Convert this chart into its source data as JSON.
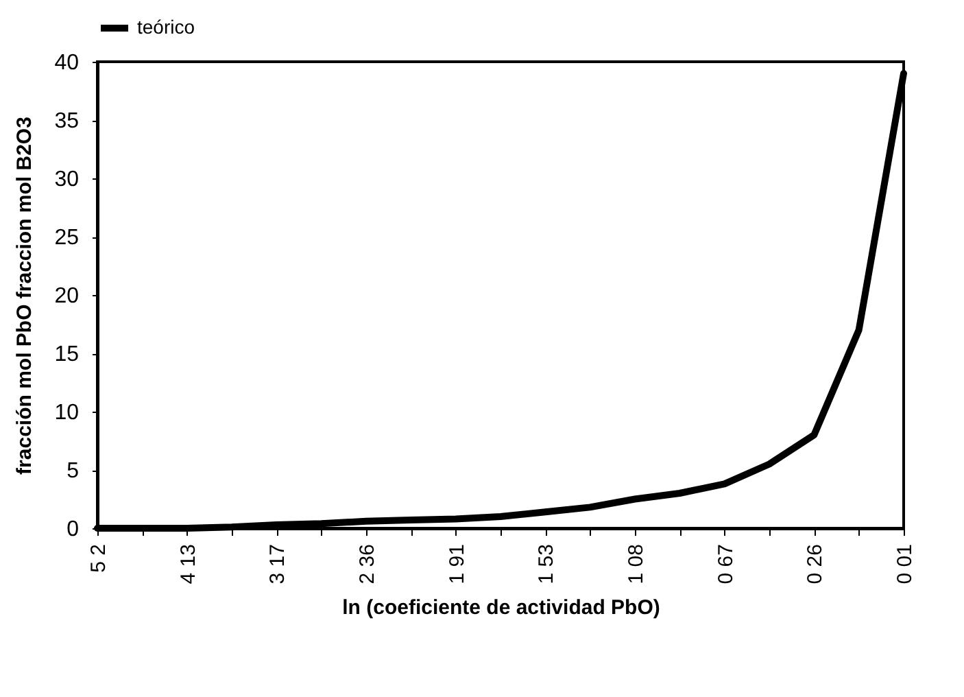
{
  "chart_data": {
    "type": "line",
    "xlabel": "ln (coeficiente de actividad PbO)",
    "ylabel": "fracción mol PbO   fraccion mol B2O3",
    "categories": [
      "5 2",
      null,
      "4 13",
      null,
      "3 17",
      null,
      "2 36",
      null,
      "1 91",
      null,
      "1 53",
      null,
      "1 08",
      null,
      "0 67",
      null,
      "0 26",
      null,
      "0 01"
    ],
    "series": [
      {
        "name": "teórico",
        "color": "#000000",
        "values": [
          0,
          0,
          0,
          0.1,
          0.3,
          0.4,
          0.6,
          0.7,
          0.8,
          1.0,
          1.4,
          1.8,
          2.5,
          3.0,
          3.8,
          5.5,
          8,
          17,
          39
        ]
      }
    ],
    "ylim": [
      0,
      40
    ],
    "yticks": [
      0,
      5,
      10,
      15,
      20,
      25,
      30,
      35,
      40
    ],
    "grid": false,
    "legend": "top",
    "marker": "none",
    "line_style": "solid"
  }
}
